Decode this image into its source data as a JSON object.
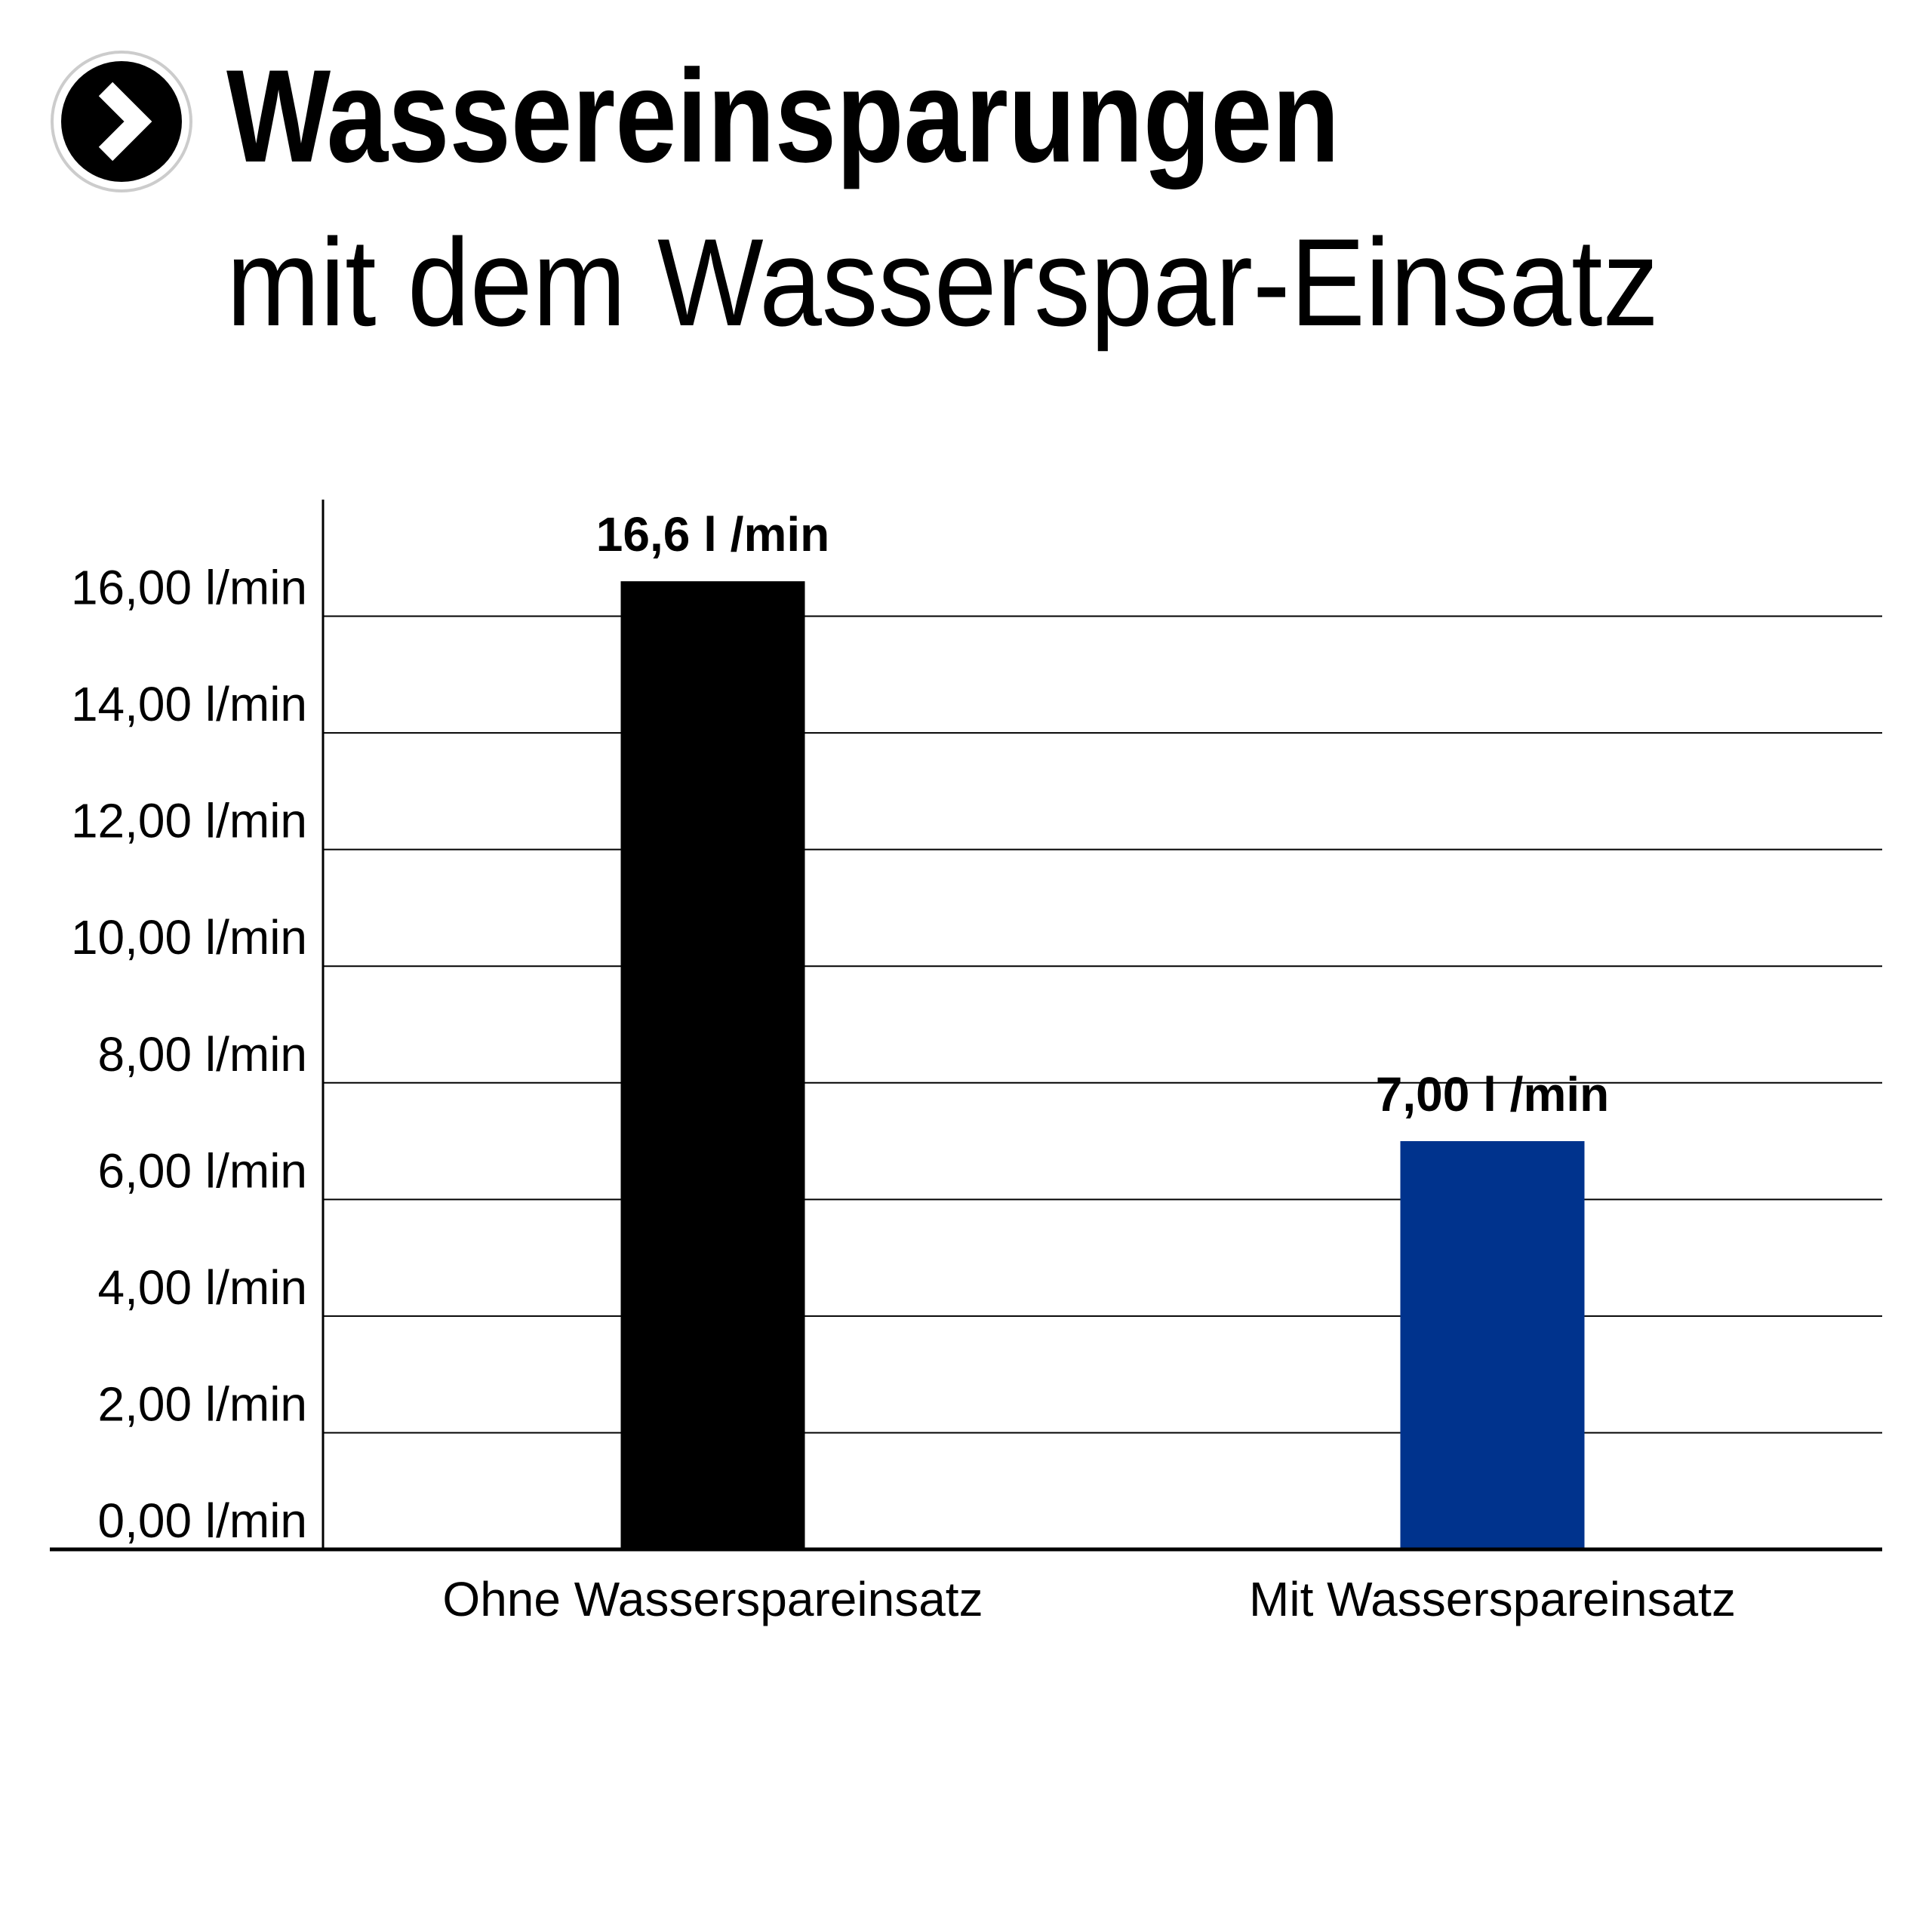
{
  "chart_data": {
    "type": "bar",
    "title": "Wassereinsparungen",
    "subtitle": "mit dem Wasserspar-Einsatz",
    "categories": [
      "Ohne Wasserspareinsatz",
      "Mit Wasserspareinsatz"
    ],
    "values": [
      16.6,
      7.0
    ],
    "value_labels": [
      "16,6 l /min",
      "7,00 l /min"
    ],
    "colors": [
      "#000000",
      "#00338d"
    ],
    "ylim": [
      0,
      18
    ],
    "yticks": [
      {
        "value": 0,
        "label": "0,00 l/min"
      },
      {
        "value": 2,
        "label": "2,00 l/min"
      },
      {
        "value": 4,
        "label": "4,00 l/min"
      },
      {
        "value": 6,
        "label": "6,00 l/min"
      },
      {
        "value": 8,
        "label": "8,00 l/min"
      },
      {
        "value": 10,
        "label": "10,00 l/min"
      },
      {
        "value": 12,
        "label": "12,00 l/min"
      },
      {
        "value": 14,
        "label": "14,00 l/min"
      },
      {
        "value": 16,
        "label": "16,00 l/min"
      }
    ],
    "grid": true
  }
}
